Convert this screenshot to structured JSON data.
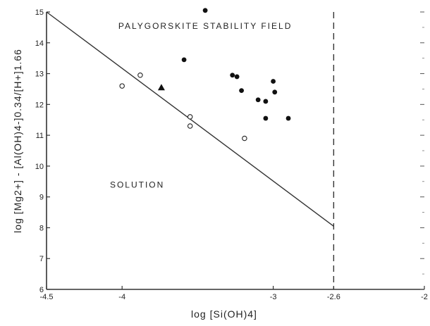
{
  "chart_data": {
    "type": "scatter",
    "xlabel": "log [Si(OH)4]",
    "ylabel": "log [Mg2+] - [Al(OH)4-]0.34/[H+]1.66",
    "xlim": [
      -4.5,
      -2.0
    ],
    "ylim": [
      6,
      15
    ],
    "x_ticks": [
      "-4.5",
      "-4",
      "-3",
      "-2.6",
      "-2"
    ],
    "y_ticks": [
      "6",
      "7",
      "8",
      "9",
      "10",
      "11",
      "12",
      "13",
      "14",
      "15"
    ],
    "grid": false,
    "boundary_line": {
      "x": [
        -4.5,
        -2.6
      ],
      "y": [
        15.0,
        8.05
      ]
    },
    "vertical_dashed_line": {
      "x": -2.6
    },
    "annotations": [
      {
        "text": "PALYGORSKITE STABILITY FIELD",
        "x": -3.45,
        "y": 14.45
      },
      {
        "text": "SOLUTION",
        "x": -3.9,
        "y": 9.3
      }
    ],
    "series": [
      {
        "marker": "filled-circle",
        "points": [
          {
            "x": -3.45,
            "y": 15.05
          },
          {
            "x": -3.59,
            "y": 13.45
          },
          {
            "x": -3.27,
            "y": 12.95
          },
          {
            "x": -3.24,
            "y": 12.9
          },
          {
            "x": -3.21,
            "y": 12.45
          },
          {
            "x": -3.1,
            "y": 12.15
          },
          {
            "x": -3.0,
            "y": 12.75
          },
          {
            "x": -2.99,
            "y": 12.4
          },
          {
            "x": -3.05,
            "y": 12.1
          },
          {
            "x": -3.05,
            "y": 11.55
          },
          {
            "x": -2.9,
            "y": 11.55
          }
        ]
      },
      {
        "marker": "open-circle",
        "points": [
          {
            "x": -4.0,
            "y": 12.6
          },
          {
            "x": -3.88,
            "y": 12.95
          },
          {
            "x": -3.55,
            "y": 11.6
          },
          {
            "x": -3.55,
            "y": 11.3
          },
          {
            "x": -3.19,
            "y": 10.9
          }
        ]
      },
      {
        "marker": "filled-triangle",
        "points": [
          {
            "x": -3.74,
            "y": 12.55
          }
        ]
      }
    ]
  }
}
